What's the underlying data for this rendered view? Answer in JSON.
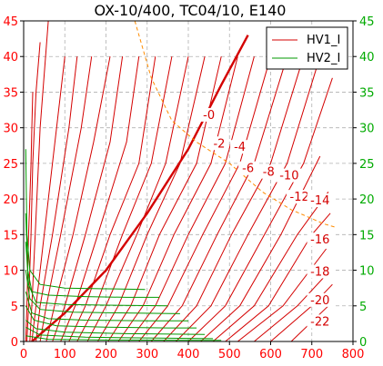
{
  "chart_data": {
    "type": "line",
    "title": "OX-10/400, TC04/10, E140",
    "xlim": [
      0,
      800
    ],
    "ylim": [
      0,
      45
    ],
    "x_ticks": [
      "0",
      "100",
      "200",
      "300",
      "400",
      "500",
      "600",
      "700",
      "800"
    ],
    "y_ticks_left": [
      "0",
      "5",
      "10",
      "15",
      "20",
      "25",
      "30",
      "35",
      "40",
      "45"
    ],
    "y_ticks_right": [
      "0",
      "5",
      "10",
      "15",
      "20",
      "25",
      "30",
      "35",
      "40",
      "45"
    ],
    "grid": true,
    "legend_position": "top-right",
    "series": [
      {
        "name": "HV1_I",
        "color": "#d40000",
        "lines": [
          {
            "points": [
              [
                5,
                0
              ],
              [
                8,
                5
              ],
              [
                10,
                10
              ],
              [
                12,
                15
              ],
              [
                15,
                20
              ],
              [
                18,
                25
              ],
              [
                20,
                30
              ],
              [
                22,
                35
              ]
            ]
          },
          {
            "points": [
              [
                8,
                0
              ],
              [
                12,
                5
              ],
              [
                18,
                15
              ],
              [
                22,
                25
              ],
              [
                30,
                35
              ],
              [
                40,
                42
              ]
            ]
          },
          {
            "points": [
              [
                15,
                0
              ],
              [
                20,
                5
              ],
              [
                28,
                15
              ],
              [
                40,
                30
              ],
              [
                60,
                45
              ]
            ]
          },
          {
            "points": [
              [
                20,
                0
              ],
              [
                30,
                5
              ],
              [
                50,
                15
              ],
              [
                80,
                30
              ],
              [
                100,
                40
              ]
            ]
          },
          {
            "points": [
              [
                30,
                0
              ],
              [
                40,
                5
              ],
              [
                70,
                15
              ],
              [
                110,
                30
              ],
              [
                130,
                40
              ]
            ]
          },
          {
            "points": [
              [
                40,
                0
              ],
              [
                55,
                5
              ],
              [
                90,
                15
              ],
              [
                140,
                30
              ],
              [
                165,
                40
              ]
            ]
          },
          {
            "points": [
              [
                55,
                0
              ],
              [
                75,
                5
              ],
              [
                120,
                15
              ],
              [
                170,
                28
              ],
              [
                210,
                40
              ]
            ]
          },
          {
            "points": [
              [
                70,
                0
              ],
              [
                100,
                5
              ],
              [
                150,
                15
              ],
              [
                210,
                28
              ],
              [
                240,
                40
              ]
            ]
          },
          {
            "points": [
              [
                90,
                0
              ],
              [
                125,
                5
              ],
              [
                180,
                15
              ],
              [
                250,
                28
              ],
              [
                280,
                40
              ]
            ]
          },
          {
            "points": [
              [
                110,
                0
              ],
              [
                150,
                5
              ],
              [
                210,
                15
              ],
              [
                280,
                25
              ],
              [
                320,
                40
              ]
            ]
          },
          {
            "points": [
              [
                130,
                0
              ],
              [
                175,
                5
              ],
              [
                240,
                15
              ],
              [
                310,
                25
              ],
              [
                360,
                40
              ]
            ]
          },
          {
            "points": [
              [
                155,
                0
              ],
              [
                200,
                5
              ],
              [
                275,
                15
              ],
              [
                345,
                25
              ],
              [
                400,
                40
              ]
            ]
          },
          {
            "points": [
              [
                180,
                0
              ],
              [
                230,
                5
              ],
              [
                300,
                15
              ],
              [
                380,
                25
              ],
              [
                440,
                40
              ]
            ]
          },
          {
            "points": [
              [
                205,
                0
              ],
              [
                260,
                5
              ],
              [
                330,
                15
              ],
              [
                420,
                25
              ],
              [
                480,
                40
              ]
            ]
          },
          {
            "points": [
              [
                230,
                0
              ],
              [
                290,
                5
              ],
              [
                365,
                15
              ],
              [
                455,
                25
              ],
              [
                520,
                40
              ]
            ]
          },
          {
            "points": [
              [
                255,
                0
              ],
              [
                320,
                5
              ],
              [
                400,
                15
              ],
              [
                490,
                25
              ],
              [
                560,
                40
              ]
            ]
          },
          {
            "points": [
              [
                280,
                0
              ],
              [
                350,
                5
              ],
              [
                435,
                15
              ],
              [
                525,
                25
              ],
              [
                600,
                40
              ]
            ]
          },
          {
            "points": [
              [
                310,
                0
              ],
              [
                385,
                5
              ],
              [
                470,
                15
              ],
              [
                560,
                25
              ],
              [
                640,
                40
              ]
            ]
          },
          {
            "points": [
              [
                340,
                0
              ],
              [
                420,
                5
              ],
              [
                505,
                15
              ],
              [
                600,
                25
              ],
              [
                680,
                40
              ]
            ]
          },
          {
            "points": [
              [
                370,
                0
              ],
              [
                455,
                5
              ],
              [
                545,
                15
              ],
              [
                640,
                25
              ],
              [
                720,
                40
              ]
            ]
          },
          {
            "points": [
              [
                400,
                0
              ],
              [
                490,
                5
              ],
              [
                585,
                15
              ],
              [
                680,
                25
              ],
              [
                750,
                37
              ]
            ]
          },
          {
            "points": [
              [
                430,
                0
              ],
              [
                525,
                5
              ],
              [
                625,
                15
              ],
              [
                720,
                26
              ]
            ]
          },
          {
            "points": [
              [
                460,
                0
              ],
              [
                560,
                5
              ],
              [
                665,
                15
              ],
              [
                740,
                21
              ]
            ]
          },
          {
            "points": [
              [
                490,
                0
              ],
              [
                595,
                5
              ],
              [
                700,
                15
              ],
              [
                745,
                18
              ]
            ]
          },
          {
            "points": [
              [
                520,
                0
              ],
              [
                630,
                5
              ],
              [
                735,
                13
              ]
            ]
          },
          {
            "points": [
              [
                560,
                0
              ],
              [
                665,
                5
              ],
              [
                745,
                10
              ]
            ]
          },
          {
            "points": [
              [
                600,
                0
              ],
              [
                700,
                5
              ],
              [
                750,
                8
              ]
            ]
          },
          {
            "points": [
              [
                650,
                0
              ],
              [
                740,
                5
              ]
            ]
          }
        ]
      },
      {
        "name": "HV1_I_highlight",
        "color": "#d40000",
        "lines": [
          {
            "points": [
              [
                20,
                0
              ],
              [
                100,
                4
              ],
              [
                200,
                10
              ],
              [
                300,
                18
              ],
              [
                400,
                27
              ],
              [
                480,
                36
              ],
              [
                545,
                43
              ]
            ]
          }
        ]
      },
      {
        "name": "HV2_I",
        "color": "#009900",
        "lines": [
          {
            "points": [
              [
                5,
                27
              ],
              [
                8,
                15
              ],
              [
                15,
                10
              ],
              [
                40,
                8
              ],
              [
                100,
                7.5
              ],
              [
                200,
                7.4
              ],
              [
                295,
                7.3
              ]
            ]
          },
          {
            "points": [
              [
                5,
                18
              ],
              [
                10,
                10
              ],
              [
                20,
                7
              ],
              [
                60,
                6.5
              ],
              [
                150,
                6.3
              ],
              [
                250,
                6.2
              ],
              [
                330,
                6.2
              ]
            ]
          },
          {
            "points": [
              [
                5,
                14
              ],
              [
                12,
                8
              ],
              [
                30,
                5.5
              ],
              [
                100,
                5.2
              ],
              [
                200,
                5.1
              ],
              [
                350,
                5.0
              ]
            ]
          },
          {
            "points": [
              [
                5,
                10
              ],
              [
                15,
                6
              ],
              [
                40,
                4.5
              ],
              [
                120,
                4.1
              ],
              [
                250,
                4.0
              ],
              [
                380,
                3.9
              ]
            ]
          },
          {
            "points": [
              [
                5,
                7
              ],
              [
                20,
                4
              ],
              [
                60,
                3.2
              ],
              [
                150,
                3.0
              ],
              [
                300,
                2.9
              ],
              [
                400,
                2.9
              ]
            ]
          },
          {
            "points": [
              [
                5,
                5
              ],
              [
                25,
                3
              ],
              [
                80,
                2.2
              ],
              [
                200,
                2.0
              ],
              [
                350,
                1.9
              ],
              [
                420,
                1.9
              ]
            ]
          },
          {
            "points": [
              [
                5,
                3
              ],
              [
                30,
                1.8
              ],
              [
                100,
                1.3
              ],
              [
                250,
                1.1
              ],
              [
                440,
                1.0
              ]
            ]
          },
          {
            "points": [
              [
                5,
                2
              ],
              [
                40,
                0.9
              ],
              [
                150,
                0.6
              ],
              [
                300,
                0.5
              ],
              [
                460,
                0.4
              ]
            ]
          },
          {
            "points": [
              [
                5,
                0.8
              ],
              [
                60,
                0.3
              ],
              [
                200,
                0.2
              ],
              [
                480,
                0.15
              ]
            ]
          }
        ]
      },
      {
        "name": "orange_dashed",
        "color": "#ff8c00",
        "lines": [
          {
            "points": [
              [
                270,
                45
              ],
              [
                310,
                37
              ],
              [
                360,
                31
              ],
              [
                420,
                28
              ],
              [
                500,
                25
              ],
              [
                580,
                21
              ],
              [
                650,
                18.5
              ],
              [
                730,
                16.5
              ],
              [
                760,
                16
              ]
            ]
          }
        ]
      }
    ],
    "legend": [
      {
        "label": "HV1_I",
        "color": "#d40000"
      },
      {
        "label": "HV2_I",
        "color": "#009900"
      }
    ],
    "annotations": [
      {
        "text": "-0",
        "x": 450,
        "y": 31.5
      },
      {
        "text": "-2",
        "x": 475,
        "y": 27.5
      },
      {
        "text": "-4",
        "x": 525,
        "y": 27
      },
      {
        "text": "-6",
        "x": 545,
        "y": 24
      },
      {
        "text": "-8",
        "x": 595,
        "y": 23.5
      },
      {
        "text": "-10",
        "x": 645,
        "y": 23
      },
      {
        "text": "-12",
        "x": 670,
        "y": 20
      },
      {
        "text": "-14",
        "x": 720,
        "y": 19.5
      },
      {
        "text": "-16",
        "x": 720,
        "y": 14
      },
      {
        "text": "-18",
        "x": 720,
        "y": 9.5
      },
      {
        "text": "-20",
        "x": 720,
        "y": 5.5
      },
      {
        "text": "-22",
        "x": 720,
        "y": 2.5
      }
    ]
  }
}
